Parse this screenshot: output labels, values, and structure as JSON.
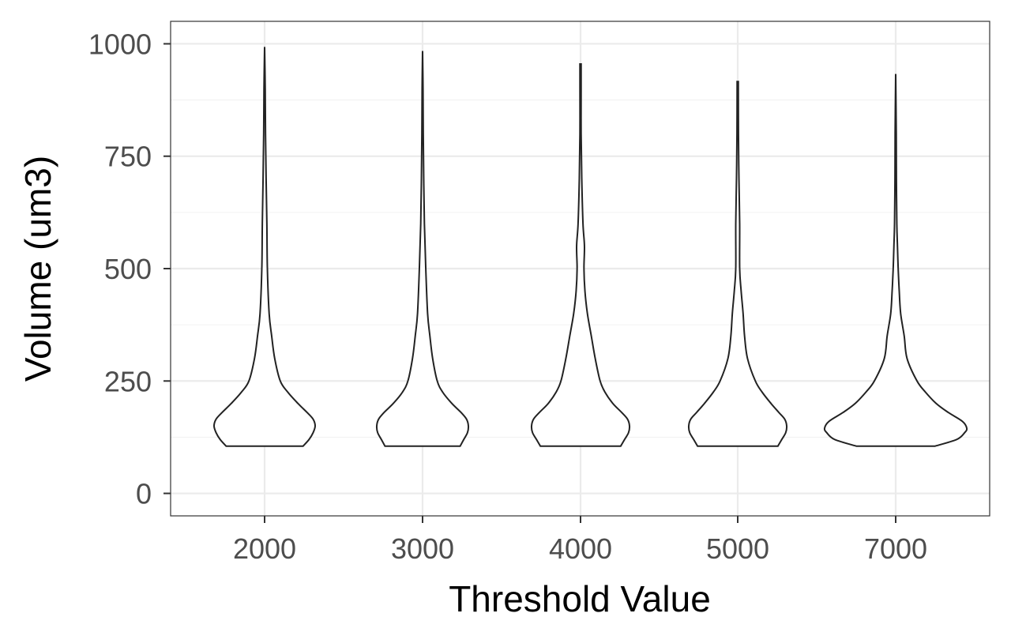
{
  "chart_data": {
    "type": "violin",
    "title": "",
    "xlabel": "Threshold Value",
    "ylabel": "Volume (um3)",
    "categories": [
      "2000",
      "3000",
      "4000",
      "5000",
      "7000"
    ],
    "ylim": [
      -50,
      1050
    ],
    "yticks": [
      0,
      250,
      500,
      750,
      1000
    ],
    "yticklabels": [
      "0",
      "250",
      "500",
      "750",
      "1000"
    ],
    "grid": true,
    "legend": "none",
    "colors": {
      "fill": "#ffffff",
      "outline": "#222222",
      "grid": "#ebebeb",
      "text": "#4d4d4d"
    },
    "series": [
      {
        "category": "2000",
        "min": 105,
        "max": 993,
        "density": [
          [
            105,
            0.76
          ],
          [
            120,
            0.88
          ],
          [
            135,
            0.96
          ],
          [
            150,
            1.0
          ],
          [
            165,
            0.96
          ],
          [
            180,
            0.84
          ],
          [
            200,
            0.66
          ],
          [
            225,
            0.46
          ],
          [
            250,
            0.31
          ],
          [
            300,
            0.2
          ],
          [
            350,
            0.14
          ],
          [
            400,
            0.09
          ],
          [
            500,
            0.055
          ],
          [
            600,
            0.045
          ],
          [
            700,
            0.03
          ],
          [
            800,
            0.018
          ],
          [
            900,
            0.012
          ],
          [
            993,
            0.0
          ]
        ]
      },
      {
        "category": "3000",
        "min": 105,
        "max": 984,
        "density": [
          [
            105,
            0.82
          ],
          [
            120,
            0.9
          ],
          [
            135,
            0.98
          ],
          [
            150,
            1.0
          ],
          [
            165,
            0.96
          ],
          [
            180,
            0.84
          ],
          [
            200,
            0.64
          ],
          [
            225,
            0.44
          ],
          [
            250,
            0.32
          ],
          [
            300,
            0.22
          ],
          [
            350,
            0.16
          ],
          [
            400,
            0.11
          ],
          [
            500,
            0.07
          ],
          [
            600,
            0.04
          ],
          [
            700,
            0.025
          ],
          [
            800,
            0.015
          ],
          [
            900,
            0.01
          ],
          [
            984,
            0.0
          ]
        ]
      },
      {
        "category": "4000",
        "min": 105,
        "max": 955,
        "density": [
          [
            105,
            0.82
          ],
          [
            120,
            0.9
          ],
          [
            135,
            0.98
          ],
          [
            150,
            1.0
          ],
          [
            165,
            0.96
          ],
          [
            180,
            0.84
          ],
          [
            200,
            0.66
          ],
          [
            225,
            0.5
          ],
          [
            250,
            0.4
          ],
          [
            300,
            0.3
          ],
          [
            350,
            0.22
          ],
          [
            400,
            0.14
          ],
          [
            450,
            0.09
          ],
          [
            500,
            0.07
          ],
          [
            550,
            0.08
          ],
          [
            600,
            0.05
          ],
          [
            700,
            0.025
          ],
          [
            800,
            0.012
          ],
          [
            900,
            0.012
          ],
          [
            955,
            0.012
          ]
        ]
      },
      {
        "category": "5000",
        "min": 105,
        "max": 916,
        "density": [
          [
            105,
            0.82
          ],
          [
            120,
            0.9
          ],
          [
            135,
            0.98
          ],
          [
            150,
            1.0
          ],
          [
            165,
            0.96
          ],
          [
            180,
            0.84
          ],
          [
            200,
            0.68
          ],
          [
            225,
            0.5
          ],
          [
            250,
            0.36
          ],
          [
            300,
            0.2
          ],
          [
            350,
            0.14
          ],
          [
            400,
            0.11
          ],
          [
            450,
            0.07
          ],
          [
            500,
            0.04
          ],
          [
            600,
            0.04
          ],
          [
            700,
            0.025
          ],
          [
            800,
            0.015
          ],
          [
            916,
            0.012
          ]
        ]
      },
      {
        "category": "7000",
        "min": 105,
        "max": 933,
        "density": [
          [
            105,
            0.55
          ],
          [
            120,
            0.86
          ],
          [
            135,
            0.97
          ],
          [
            145,
            1.0
          ],
          [
            160,
            0.94
          ],
          [
            180,
            0.74
          ],
          [
            200,
            0.57
          ],
          [
            225,
            0.42
          ],
          [
            250,
            0.3
          ],
          [
            300,
            0.16
          ],
          [
            350,
            0.12
          ],
          [
            400,
            0.07
          ],
          [
            450,
            0.05
          ],
          [
            500,
            0.035
          ],
          [
            550,
            0.025
          ],
          [
            600,
            0.016
          ],
          [
            700,
            0.01
          ],
          [
            800,
            0.008
          ],
          [
            933,
            0.0
          ]
        ]
      }
    ]
  }
}
